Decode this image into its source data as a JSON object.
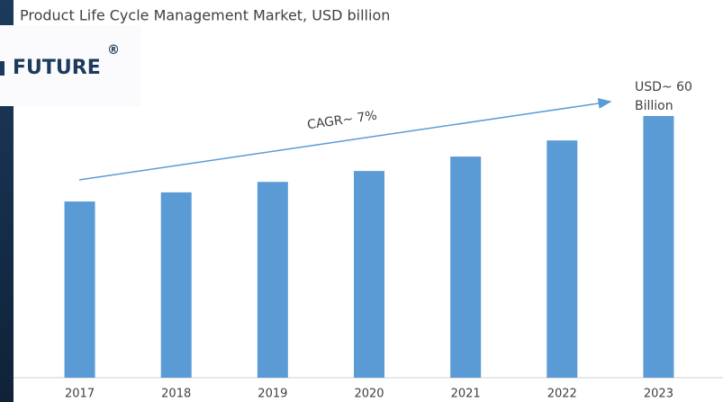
{
  "chart_data": {
    "type": "bar",
    "title": "Product Life Cycle Management Market, USD billion",
    "categories": [
      "2017",
      "2018",
      "2019",
      "2020",
      "2021",
      "2022",
      "2023"
    ],
    "values": [
      40.4,
      42.5,
      44.9,
      47.4,
      50.7,
      54.4,
      60
    ],
    "color": "#5b9bd5",
    "annotations": [
      "CAGR~ 7%",
      "USD~ 60",
      "Billion"
    ]
  },
  "logo": {
    "text": "FUTURE",
    "mark": "®"
  }
}
